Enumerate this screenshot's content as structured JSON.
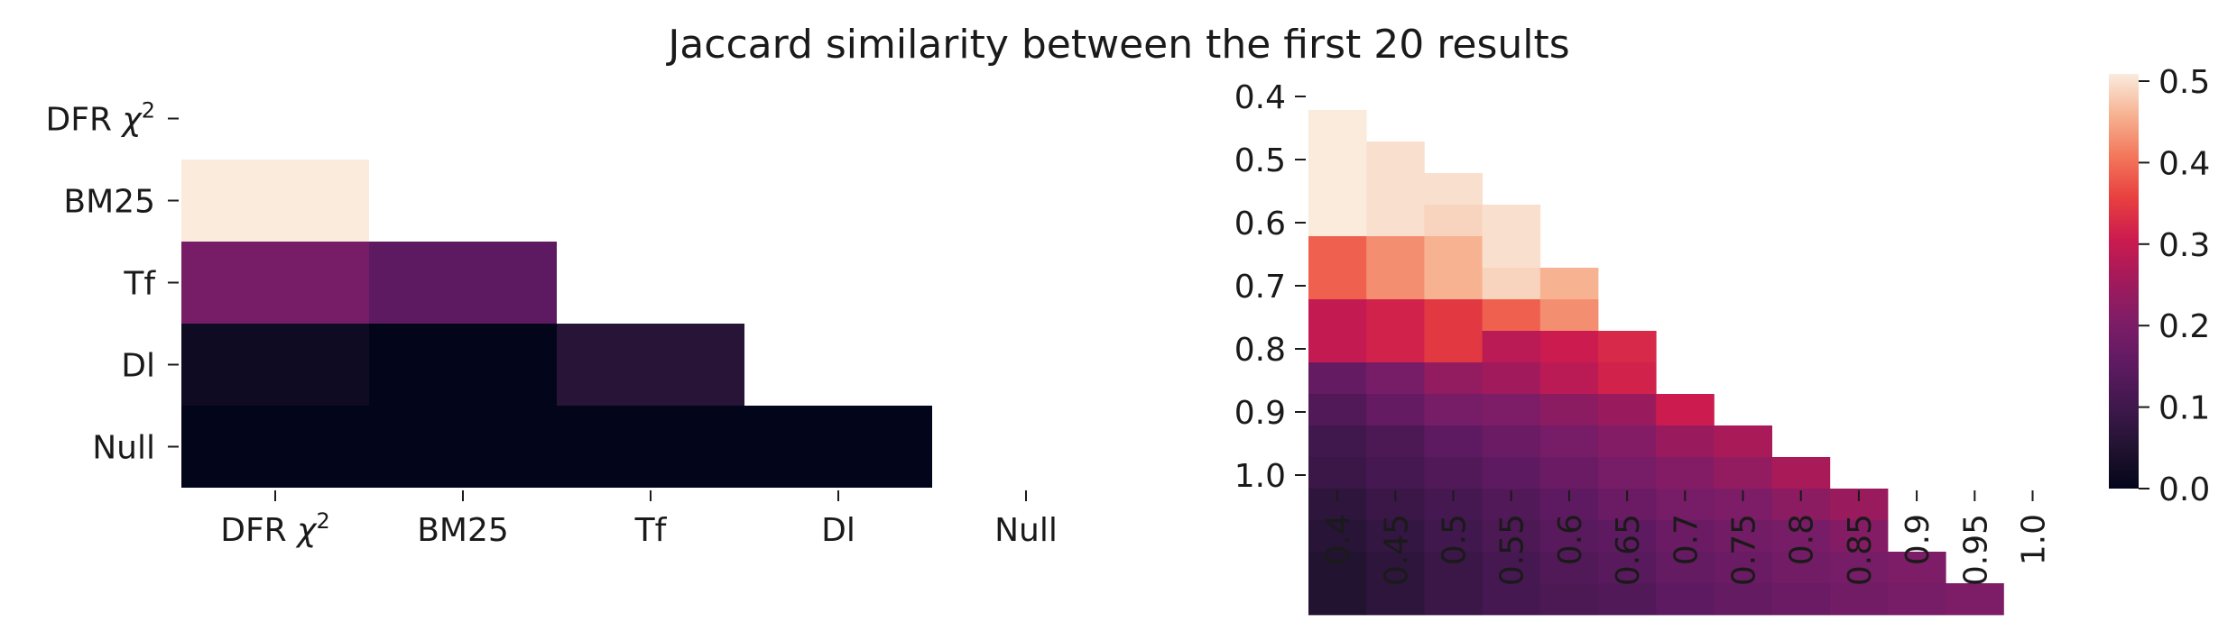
{
  "chart_data": [
    {
      "type": "heatmap",
      "title": "Jaccard similarity between the first 20 results",
      "x_ticks": [
        "DFR χ²",
        "BM25",
        "Tf",
        "Dl",
        "Null"
      ],
      "y_ticks": [
        "DFR χ²",
        "BM25",
        "Tf",
        "Dl",
        "Null"
      ],
      "mask": "upper-triangle including diagonal",
      "values": [
        [
          null,
          null,
          null,
          null,
          null
        ],
        [
          0.5,
          null,
          null,
          null,
          null
        ],
        [
          0.19,
          0.15,
          null,
          null,
          null
        ],
        [
          0.02,
          0.0,
          0.06,
          null,
          null
        ],
        [
          0.0,
          0.0,
          0.0,
          0.0,
          null
        ]
      ],
      "vmin": 0.0,
      "vmax": 0.5,
      "colormap": "rocket"
    },
    {
      "type": "heatmap",
      "x_ticks": [
        "0.4",
        "0.45",
        "0.5",
        "0.55",
        "0.6",
        "0.65",
        "0.7",
        "0.75",
        "0.8",
        "0.85",
        "0.9",
        "0.95",
        "1.0"
      ],
      "y_ticks": [
        "0.4",
        "0.5",
        "0.6",
        "0.7",
        "0.8",
        "0.9",
        "1.0"
      ],
      "mask": "upper triangle",
      "values": [
        [
          0.5,
          null,
          null,
          null,
          null,
          null,
          null,
          null,
          null,
          null,
          null,
          null,
          null
        ],
        [
          0.5,
          0.49,
          null,
          null,
          null,
          null,
          null,
          null,
          null,
          null,
          null,
          null,
          null
        ],
        [
          0.5,
          0.49,
          0.49,
          null,
          null,
          null,
          null,
          null,
          null,
          null,
          null,
          null,
          null
        ],
        [
          0.5,
          0.49,
          0.48,
          0.49,
          null,
          null,
          null,
          null,
          null,
          null,
          null,
          null,
          null
        ],
        [
          0.38,
          0.42,
          0.45,
          0.49,
          null,
          null,
          null,
          null,
          null,
          null,
          null,
          null,
          null
        ],
        [
          0.38,
          0.42,
          0.45,
          0.48,
          0.45,
          null,
          null,
          null,
          null,
          null,
          null,
          null,
          null
        ],
        [
          0.29,
          0.31,
          0.34,
          0.38,
          0.42,
          null,
          null,
          null,
          null,
          null,
          null,
          null,
          null
        ],
        [
          0.29,
          0.31,
          0.34,
          0.28,
          0.3,
          0.32,
          null,
          null,
          null,
          null,
          null,
          null,
          null
        ],
        [
          0.16,
          0.19,
          0.23,
          0.25,
          0.28,
          0.31,
          null,
          null,
          null,
          null,
          null,
          null,
          null
        ],
        [
          0.13,
          0.16,
          0.19,
          0.2,
          0.22,
          0.24,
          0.3,
          null,
          null,
          null,
          null,
          null,
          null
        ],
        [
          0.1,
          0.12,
          0.15,
          0.17,
          0.19,
          0.21,
          0.24,
          0.26,
          null,
          null,
          null,
          null,
          null
        ],
        [
          0.09,
          0.11,
          0.13,
          0.15,
          0.17,
          0.19,
          0.21,
          0.23,
          0.26,
          null,
          null,
          null,
          null
        ],
        [
          0.07,
          0.09,
          0.11,
          0.13,
          0.15,
          0.17,
          0.19,
          0.2,
          0.22,
          0.24,
          null,
          null,
          null
        ],
        [
          0.06,
          0.08,
          0.1,
          0.12,
          0.14,
          0.15,
          0.17,
          0.18,
          0.19,
          0.21,
          null,
          null,
          null
        ],
        [
          0.05,
          0.07,
          0.09,
          0.11,
          0.13,
          0.14,
          0.16,
          0.17,
          0.18,
          0.19,
          0.2,
          null,
          null
        ],
        [
          0.05,
          0.07,
          0.09,
          0.11,
          0.12,
          0.13,
          0.15,
          0.16,
          0.17,
          0.18,
          0.19,
          0.2,
          null
        ]
      ],
      "vmin": 0.0,
      "vmax": 0.5,
      "colormap": "rocket",
      "colorbar_ticks": [
        "0.0",
        "0.1",
        "0.2",
        "0.3",
        "0.4",
        "0.5"
      ]
    }
  ]
}
